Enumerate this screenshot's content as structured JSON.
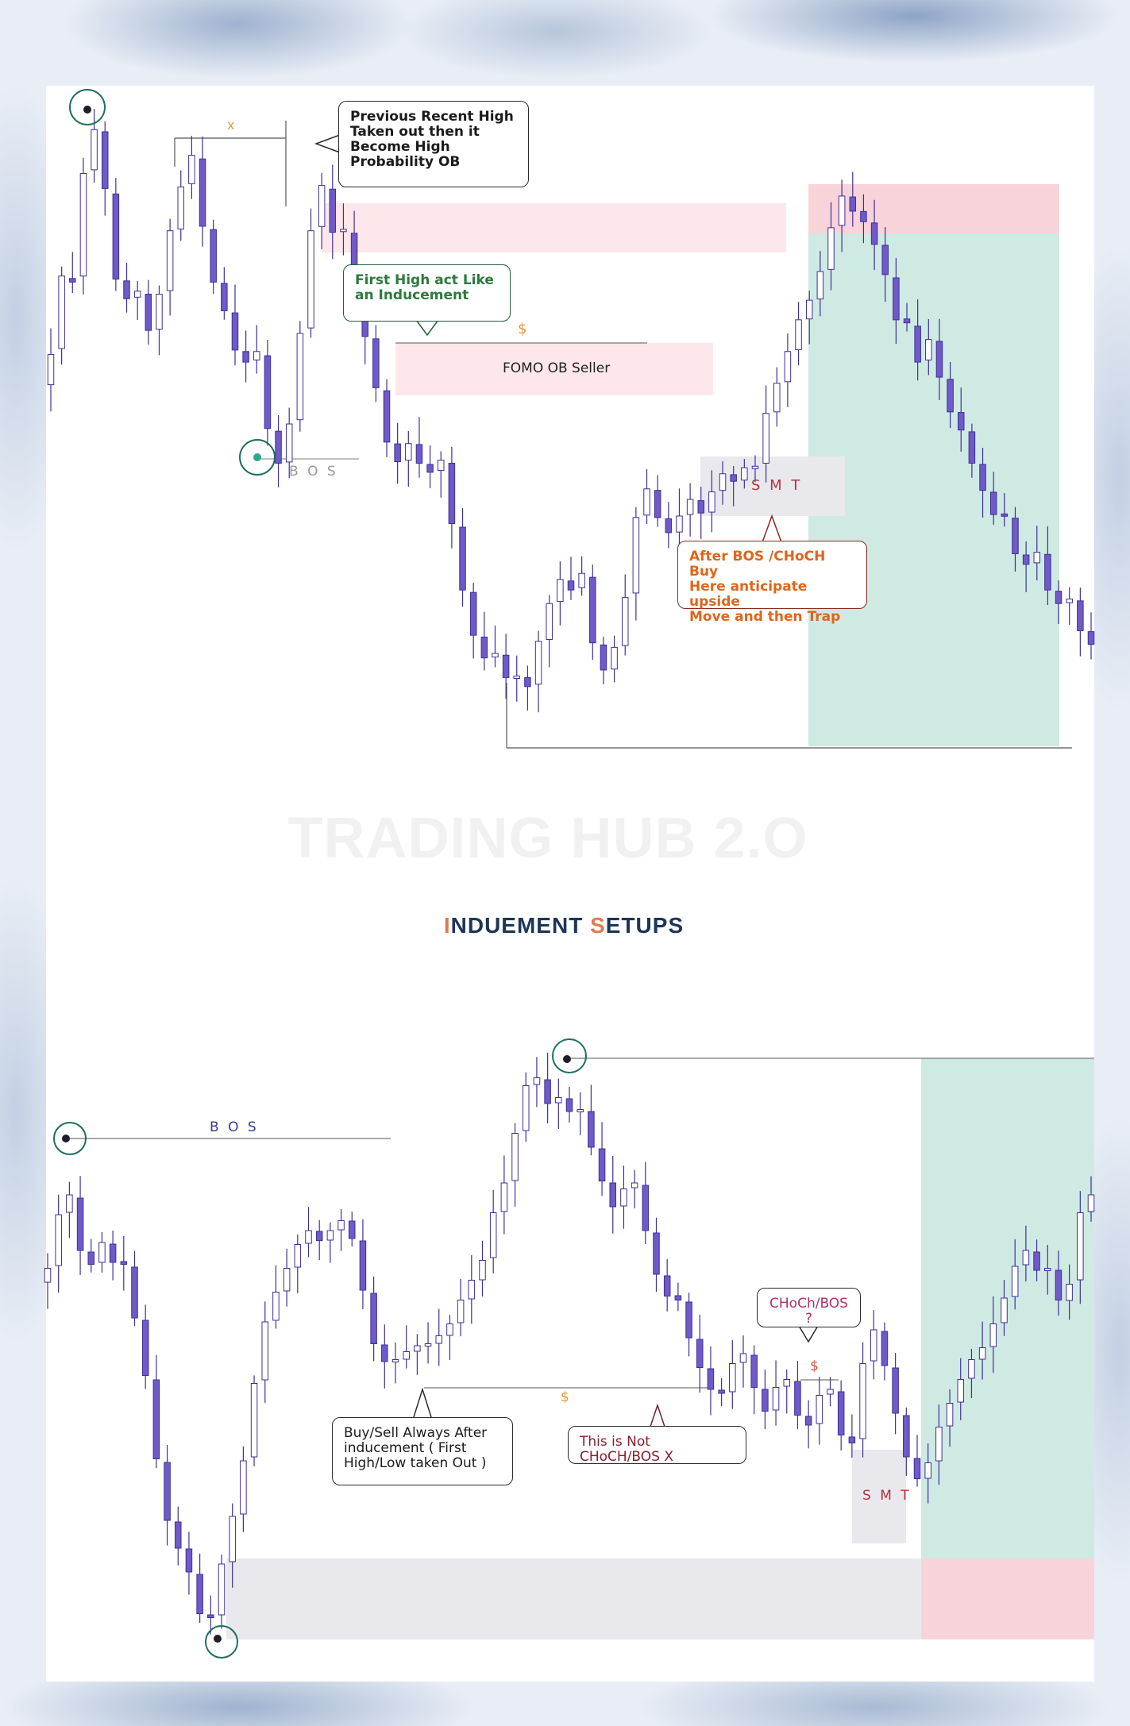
{
  "watermark": "TRADING HUB 2.O",
  "section_title": {
    "first_letter": "I",
    "first_rest": "NDUEMENT ",
    "second_letter": "S",
    "second_rest": "ETUPS"
  },
  "colors": {
    "candle": "#6f5ac7",
    "candle_dark": "#3f2f9a",
    "supply_zone": "#fde7ea",
    "target_zone": "#cfeae3",
    "stop_zone": "#f9d3da",
    "smt_zone": "#e9e9ed",
    "circle": "#1f6e5e"
  },
  "chart_top": {
    "annotations": {
      "x_mark": "x",
      "callout_previous_high": "Previous Recent High\nTaken out then it\nBecome High\nProbability OB",
      "callout_inducement": "First High act Like\nan Inducement",
      "dollar": "$",
      "fomo_ob": "FOMO OB Seller",
      "bos": "B O S",
      "smt": "S M T",
      "callout_after_bos": "After BOS /CHoCH Buy\nHere anticipate upside\nMove and then Trap"
    }
  },
  "chart_bottom": {
    "annotations": {
      "bos": "B O S",
      "choch_bos": "CHoCh/BOS ?",
      "dollar_1": "$",
      "dollar_2": "$",
      "smt": "S M T",
      "callout_buy_sell": "Buy/Sell  Always After\ninducement ( First\nHigh/Low taken Out )",
      "callout_not_choch": "This is Not CHoCH/BOS X"
    }
  },
  "chart_data": [
    {
      "type": "candlestick",
      "title": "",
      "ohlc_path": [
        5.2,
        7.2,
        6.4,
        8.4,
        9.6,
        8.9,
        7.1,
        6.5,
        7.0,
        6.0,
        6.4,
        7.6,
        8.2,
        9.3,
        8.1,
        7.0,
        6.6,
        5.9,
        5.4,
        6.1,
        4.7,
        3.8,
        4.2,
        5.6,
        7.4,
        8.8,
        7.6,
        8.1,
        6.8,
        6.2,
        5.4,
        4.4,
        3.8,
        4.3,
        4.0,
        3.6,
        4.2,
        3.2,
        2.0,
        1.2,
        0.6,
        0.9,
        0.3,
        0.5,
        0.0,
        0.8,
        1.4,
        2.1,
        1.6,
        2.4,
        1.1,
        0.4,
        0.7,
        1.3,
        2.8,
        3.6,
        3.1,
        2.7,
        2.9,
        3.4,
        3.0,
        3.3,
        3.8,
        3.5,
        3.9,
        3.6,
        4.6,
        5.1,
        5.6,
        6.2,
        6.5,
        6.9,
        7.6,
        8.4,
        8.1,
        8.0,
        7.6,
        7.3,
        6.2,
        6.5,
        5.4,
        6.1,
        5.5,
        4.8,
        4.6,
        4.0,
        3.6,
        3.0,
        3.2,
        2.5,
        2.1,
        2.6,
        1.9,
        1.5,
        1.8,
        1.2,
        0.9
      ],
      "series": [
        {
          "name": "",
          "kind": "price"
        }
      ]
    },
    {
      "type": "candlestick",
      "title": "",
      "ohlc_path": [
        4.5,
        5.2,
        5.8,
        5.0,
        4.6,
        5.1,
        4.7,
        4.9,
        4.2,
        3.6,
        2.5,
        1.6,
        1.2,
        1.0,
        0.4,
        0.1,
        0.8,
        1.4,
        2.0,
        3.0,
        3.9,
        4.3,
        4.6,
        4.9,
        5.2,
        5.0,
        5.1,
        5.3,
        5.2,
        4.6,
        3.8,
        3.5,
        3.5,
        3.6,
        3.7,
        3.7,
        3.8,
        3.9,
        4.2,
        4.5,
        4.6,
        5.3,
        5.6,
        6.2,
        6.9,
        7.2,
        6.7,
        6.9,
        6.6,
        6.8,
        6.3,
        5.9,
        5.4,
        5.6,
        5.9,
        5.3,
        4.7,
        4.3,
        4.4,
        3.9,
        3.5,
        3.2,
        3.0,
        3.4,
        3.7,
        3.3,
        2.8,
        3.1,
        3.4,
        2.9,
        2.6,
        3.0,
        3.3,
        2.7,
        2.2,
        3.3,
        4.0,
        3.6,
        3.0,
        2.4,
        2.0,
        2.1,
        2.6,
        2.9,
        3.2,
        3.5,
        3.6,
        3.9,
        4.2,
        4.6,
        5.0,
        4.6,
        4.8,
        4.3,
        4.2,
        5.3,
        5.6
      ],
      "series": [
        {
          "name": "",
          "kind": "price"
        }
      ]
    }
  ]
}
